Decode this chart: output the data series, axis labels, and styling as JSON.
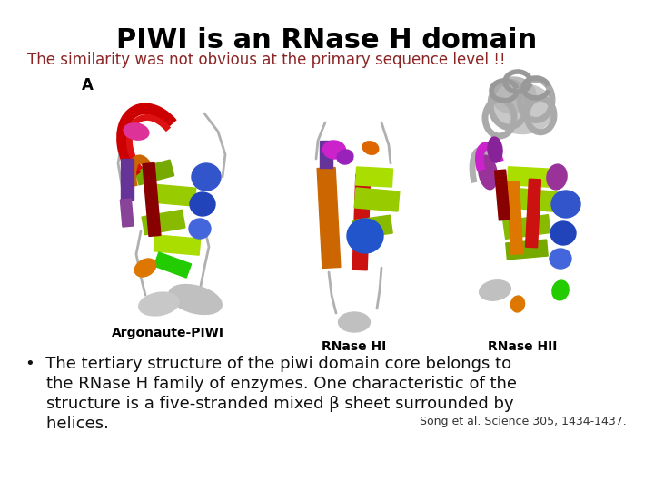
{
  "title": "PIWI is an RNase H domain",
  "subtitle": "The similarity was not obvious at the primary sequence level !!",
  "subtitle_color": "#8B2525",
  "title_color": "#000000",
  "title_fontsize": 22,
  "subtitle_fontsize": 12,
  "background_color": "#ffffff",
  "bullet_line1": "•  The tertiary structure of the piwi domain core belongs to",
  "bullet_line2": "    the RNase H family of enzymes. One characteristic of the",
  "bullet_line3": "    structure is a five-stranded mixed β sheet surrounded by",
  "bullet_line4": "    helices.",
  "citation": "Song et al. Science 305, 1434-1437.",
  "bullet_fontsize": 13,
  "citation_fontsize": 9,
  "label_A": "A",
  "label_argonaute": "Argonaute-PIWI",
  "label_rnaseHI": "RNase HI",
  "label_rnaseHII": "RNase HII",
  "label_fontsize": 10
}
